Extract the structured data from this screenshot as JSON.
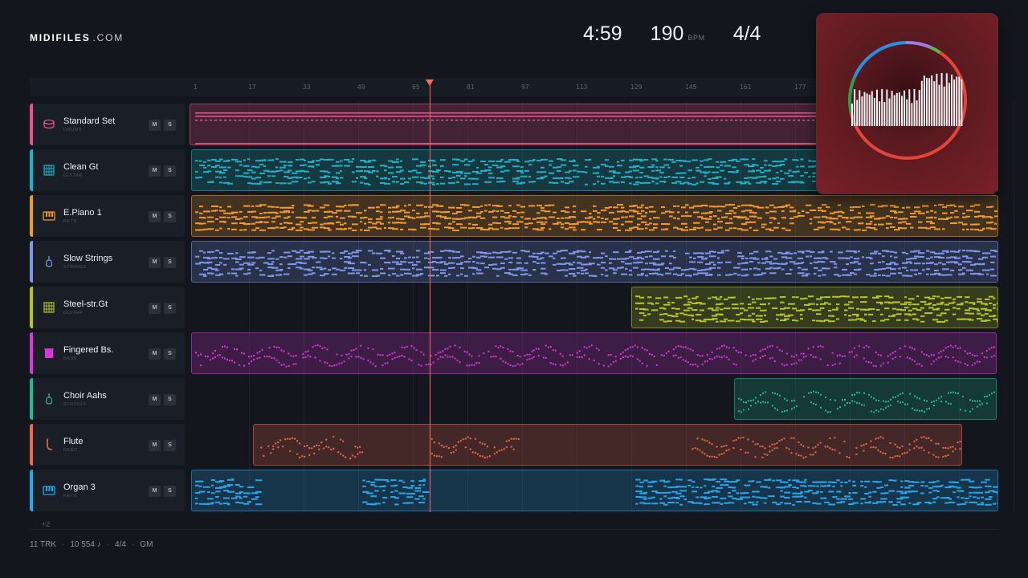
{
  "brand": {
    "name": "MIDIFILES",
    "suffix": ".COM"
  },
  "stats": {
    "time": "4:59",
    "bpm": "190",
    "bpm_unit": "BPM",
    "time_signature": "4/4"
  },
  "ruler": {
    "ticks": [
      "1",
      "17",
      "33",
      "49",
      "65",
      "81",
      "97",
      "113",
      "129",
      "145",
      "161",
      "177"
    ]
  },
  "playhead_bar": 70,
  "tracks": [
    {
      "name": "Standard Set",
      "category": "DRUMS",
      "color": "#e8548a",
      "icon": "drum-icon",
      "mute_label": "M",
      "solo_label": "S"
    },
    {
      "name": "Clean Gt",
      "category": "GUITAR",
      "color": "#1fb2c6",
      "icon": "guitar-fretboard-icon",
      "mute_label": "M",
      "solo_label": "S"
    },
    {
      "name": "E.Piano 1",
      "category": "KEYS",
      "color": "#f29a2e",
      "icon": "piano-keys-icon",
      "mute_label": "M",
      "solo_label": "S"
    },
    {
      "name": "Slow Strings",
      "category": "STRINGS",
      "color": "#8096ee",
      "icon": "violin-icon",
      "mute_label": "M",
      "solo_label": "S"
    },
    {
      "name": "Steel-str.Gt",
      "category": "GUITAR",
      "color": "#b5c625",
      "icon": "guitar-fretboard-icon",
      "mute_label": "M",
      "solo_label": "S"
    },
    {
      "name": "Fingered Bs.",
      "category": "BASS",
      "color": "#d838d8",
      "icon": "bass-amp-icon",
      "mute_label": "M",
      "solo_label": "S"
    },
    {
      "name": "Choir Aahs",
      "category": "STRINGS",
      "color": "#22b895",
      "icon": "violin-icon",
      "mute_label": "M",
      "solo_label": "S"
    },
    {
      "name": "Flute",
      "category": "REED",
      "color": "#f0684e",
      "icon": "reed-icon",
      "mute_label": "M",
      "solo_label": "S"
    },
    {
      "name": "Organ 3",
      "category": "KEYS",
      "color": "#27a6ec",
      "icon": "piano-keys-icon",
      "mute_label": "M",
      "solo_label": "S"
    }
  ],
  "more_tracks": "+2",
  "footer": {
    "tracks": "11 TRK",
    "notes": "10 554 ♪",
    "meter": "4/4",
    "standard": "GM"
  }
}
